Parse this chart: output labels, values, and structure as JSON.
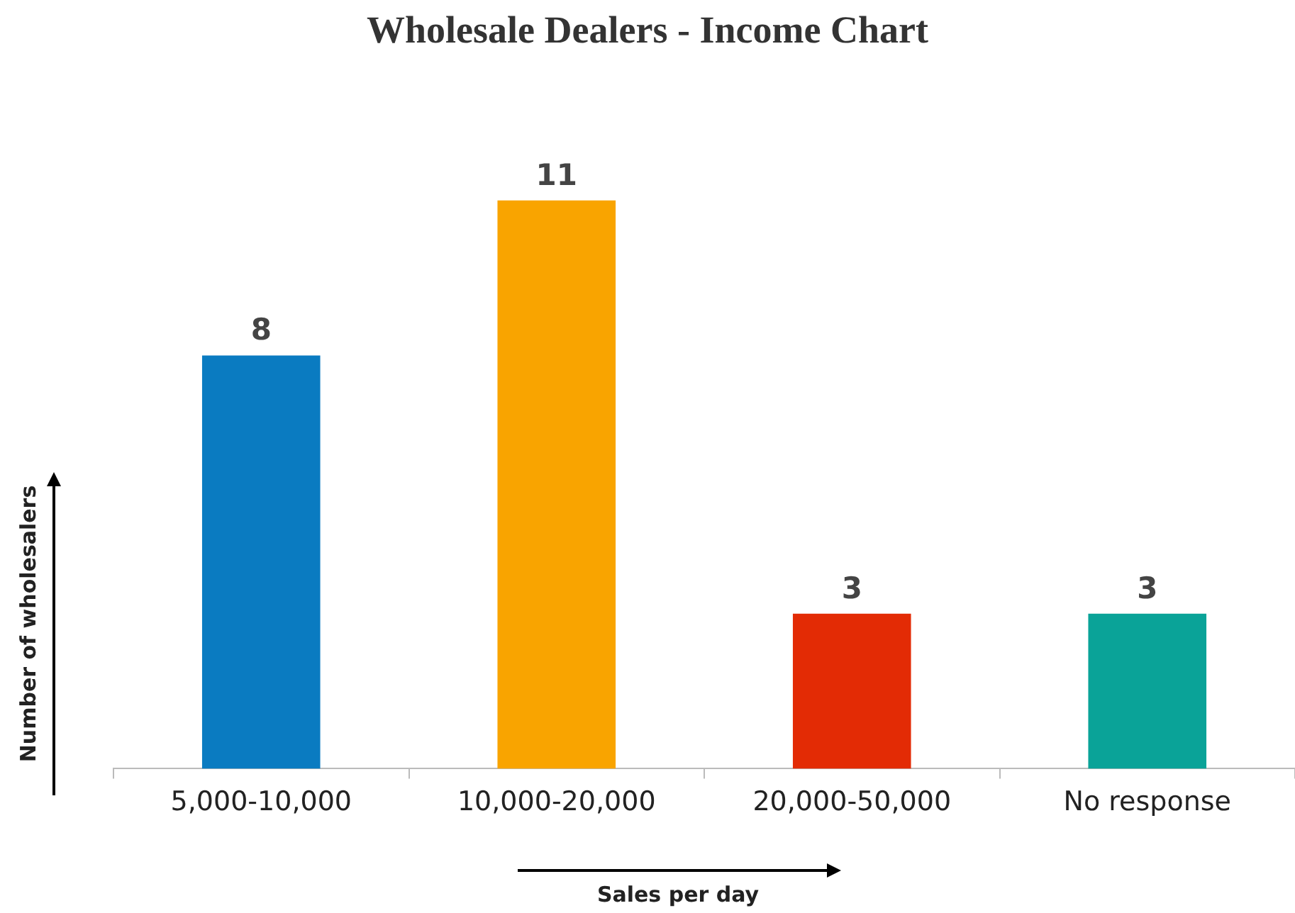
{
  "chart_data": {
    "type": "bar",
    "title": "Wholesale Dealers - Income Chart",
    "xlabel": "Sales per day",
    "ylabel": "Number of wholesalers",
    "categories": [
      "5,000-10,000",
      "10,000-20,000",
      "20,000-50,000",
      "No response"
    ],
    "values": [
      8,
      11,
      3,
      3
    ],
    "colors": [
      "#0a7bc1",
      "#f9a400",
      "#e32b05",
      "#0aa398"
    ],
    "data_labels": true,
    "tick_labels": "x",
    "legend": false
  }
}
